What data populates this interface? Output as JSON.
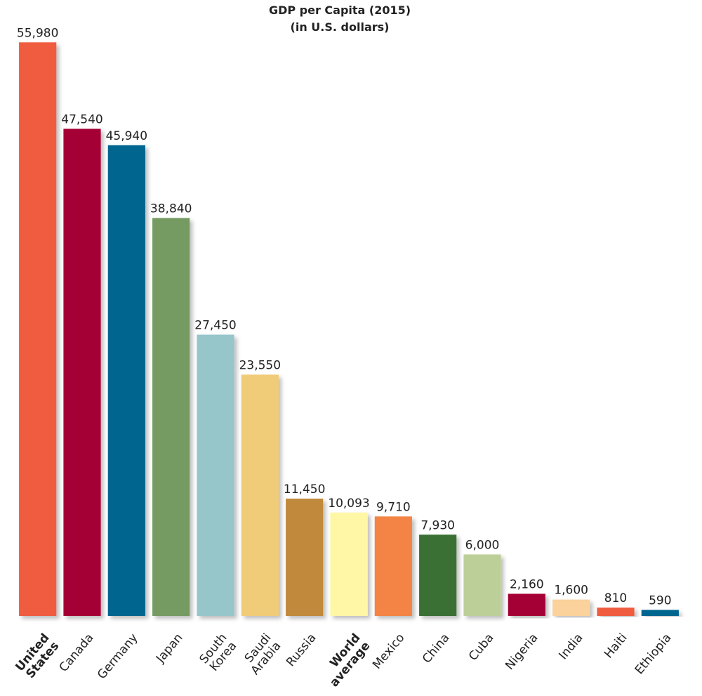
{
  "chart_data": {
    "type": "bar",
    "title": "GDP per Capita (2015)",
    "subtitle": "(in U.S. dollars)",
    "categories": [
      "United States",
      "Canada",
      "Germany",
      "Japan",
      "South Korea",
      "Saudi Arabia",
      "Russia",
      "World average",
      "Mexico",
      "China",
      "Cuba",
      "Nigeria",
      "India",
      "Haiti",
      "Ethiopia"
    ],
    "values": [
      55980,
      47540,
      45940,
      38840,
      27450,
      23550,
      11450,
      10093,
      9710,
      7930,
      6000,
      2160,
      1600,
      810,
      590
    ],
    "value_labels": [
      "55,980",
      "47,540",
      "45,940",
      "38,840",
      "27,450",
      "23,550",
      "11,450",
      "10,093",
      "9,710",
      "7,930",
      "6,000",
      "2,160",
      "1,600",
      "810",
      "590"
    ],
    "colors": [
      "#ef5b3f",
      "#a50034",
      "#00658f",
      "#749b62",
      "#96c5ca",
      "#f0cb78",
      "#c0893a",
      "#fff7a6",
      "#f38444",
      "#3a7034",
      "#bccf98",
      "#a50034",
      "#fbd29b",
      "#ef5b3f",
      "#00658f"
    ],
    "bold_categories": [
      0,
      7
    ],
    "ylim": [
      0,
      56000
    ]
  }
}
